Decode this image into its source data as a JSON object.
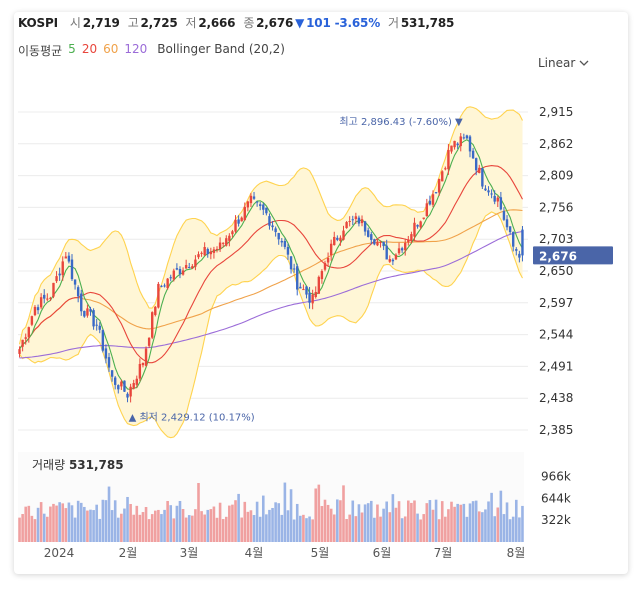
{
  "header": {
    "symbol": "KOSPI",
    "open_label": "시",
    "open_value": "2,719",
    "high_label": "고",
    "high_value": "2,725",
    "low_label": "저",
    "low_value": "2,666",
    "close_label": "종",
    "close_value": "2,676",
    "change_arrow": "▼",
    "change_value": "101",
    "change_pct": "-3.65%",
    "volume_label": "거",
    "volume_value": "531,785"
  },
  "legend": {
    "ma_label": "이동평균",
    "ma5": "5",
    "ma20": "20",
    "ma60": "60",
    "ma120": "120",
    "bollinger": "Bollinger Band (20,2)"
  },
  "scale_button": "Linear",
  "colors": {
    "up": "#e8463c",
    "down": "#3a69c6",
    "ma5": "#4caf50",
    "ma20": "#e8463c",
    "ma60": "#f0a24a",
    "ma120": "#9b6cd8",
    "band_fill": "#fff6d6",
    "band_line": "#ffd34f",
    "current_tag": "#4a65a8"
  },
  "chart_data": {
    "type": "candlestick",
    "title": "KOSPI",
    "y_ticks": [
      "2,915",
      "2,862",
      "2,809",
      "2,756",
      "2,703",
      "2,650",
      "2,597",
      "2,544",
      "2,491",
      "2,438",
      "2,385"
    ],
    "ylim": [
      2385,
      2915
    ],
    "x_ticks": [
      "2024",
      "2월",
      "3월",
      "4월",
      "5월",
      "6월",
      "7월",
      "8월"
    ],
    "current_price": "2,676",
    "high_annotation": {
      "label": "최고",
      "value": "2,896.43",
      "pct": "(-7.60%)",
      "arrow": "▼"
    },
    "low_annotation": {
      "label": "최저",
      "value": "2,429.12",
      "pct": "(10.17%)",
      "arrow": "▲"
    },
    "anchors": [
      [
        0,
        2520
      ],
      [
        5,
        2590
      ],
      [
        10,
        2610
      ],
      [
        15,
        2680
      ],
      [
        20,
        2590
      ],
      [
        25,
        2560
      ],
      [
        30,
        2470
      ],
      [
        35,
        2445
      ],
      [
        40,
        2500
      ],
      [
        45,
        2620
      ],
      [
        50,
        2645
      ],
      [
        55,
        2665
      ],
      [
        60,
        2680
      ],
      [
        65,
        2690
      ],
      [
        70,
        2730
      ],
      [
        75,
        2765
      ],
      [
        80,
        2745
      ],
      [
        85,
        2700
      ],
      [
        90,
        2630
      ],
      [
        95,
        2600
      ],
      [
        100,
        2680
      ],
      [
        105,
        2725
      ],
      [
        110,
        2735
      ],
      [
        115,
        2705
      ],
      [
        120,
        2670
      ],
      [
        125,
        2700
      ],
      [
        130,
        2740
      ],
      [
        135,
        2790
      ],
      [
        140,
        2860
      ],
      [
        145,
        2868
      ],
      [
        150,
        2800
      ],
      [
        155,
        2770
      ],
      [
        160,
        2690
      ],
      [
        163,
        2676
      ]
    ],
    "volume": {
      "label": "거래량",
      "value": "531,785",
      "ticks": [
        "966k",
        "644k",
        "322k"
      ],
      "ylim": [
        0,
        1150
      ]
    }
  }
}
